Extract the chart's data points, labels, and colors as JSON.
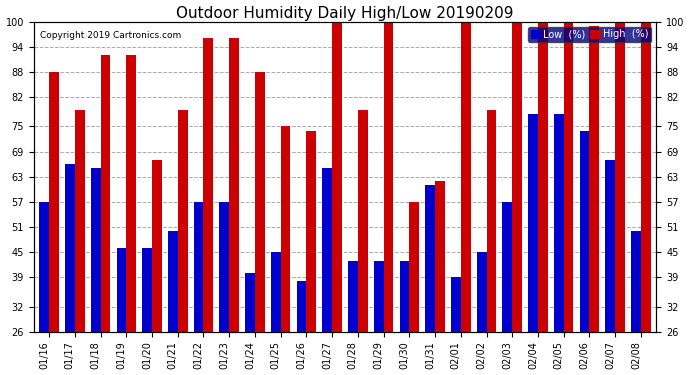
{
  "title": "Outdoor Humidity Daily High/Low 20190209",
  "copyright": "Copyright 2019 Cartronics.com",
  "legend_labels": [
    "Low  (%)",
    "High  (%)"
  ],
  "legend_colors": [
    "#0000cc",
    "#cc0000"
  ],
  "dates": [
    "01/16",
    "01/17",
    "01/18",
    "01/19",
    "01/20",
    "01/21",
    "01/22",
    "01/23",
    "01/24",
    "01/25",
    "01/26",
    "01/27",
    "01/28",
    "01/29",
    "01/30",
    "01/31",
    "02/01",
    "02/02",
    "02/03",
    "02/04",
    "02/05",
    "02/06",
    "02/07",
    "02/08"
  ],
  "high": [
    88,
    79,
    92,
    92,
    67,
    79,
    96,
    96,
    88,
    75,
    74,
    100,
    79,
    100,
    57,
    62,
    100,
    79,
    100,
    100,
    100,
    99,
    100,
    100
  ],
  "low": [
    57,
    66,
    65,
    46,
    46,
    50,
    57,
    57,
    40,
    45,
    38,
    65,
    43,
    43,
    43,
    61,
    39,
    45,
    57,
    78,
    78,
    74,
    67,
    50
  ],
  "ylim": [
    26,
    100
  ],
  "yticks": [
    26,
    32,
    39,
    45,
    51,
    57,
    63,
    69,
    75,
    82,
    88,
    94,
    100
  ],
  "bar_width": 0.38,
  "bg_color": "#ffffff",
  "grid_color": "#aaaaaa",
  "low_color": "#0000cc",
  "high_color": "#cc0000",
  "title_fontsize": 11,
  "tick_fontsize": 7
}
